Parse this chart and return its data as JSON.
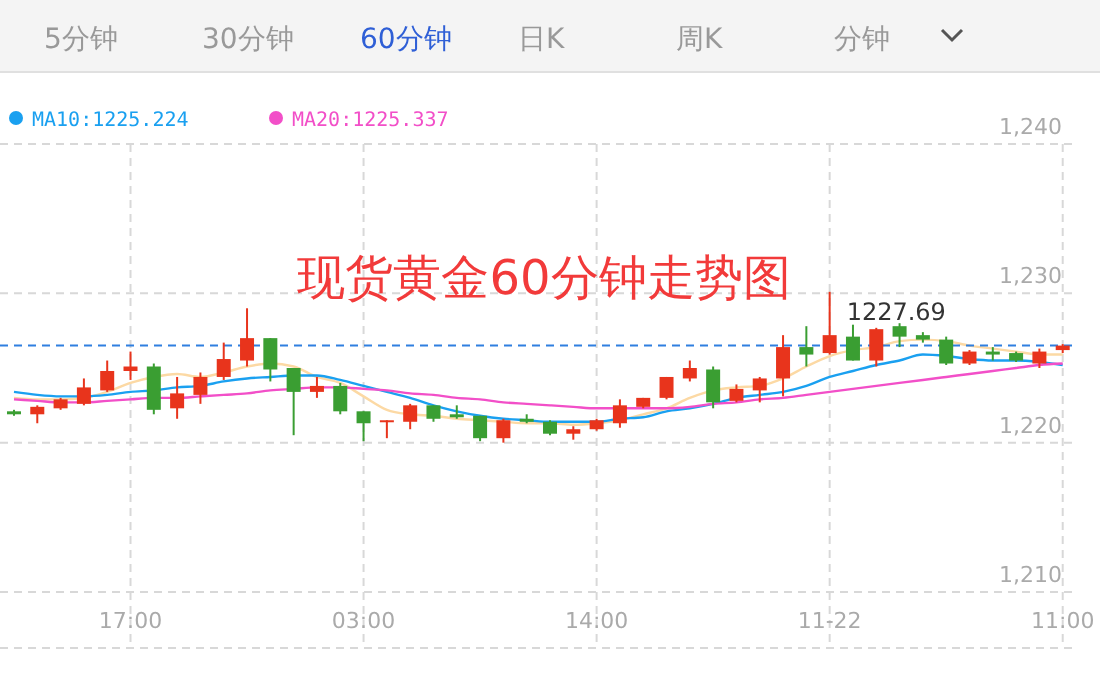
{
  "chart_data": {
    "type": "candlestick",
    "title": "现货黄金60分钟走势图",
    "annotations": [
      "5分钟",
      "30分钟",
      "60分钟",
      "日K",
      "周K",
      "分钟",
      {
        "text": "1227.69",
        "y": 1227.69
      }
    ],
    "categories": [
      null,
      null,
      null,
      null,
      null,
      "17:00",
      null,
      null,
      null,
      null,
      null,
      null,
      null,
      null,
      null,
      "03:00",
      null,
      null,
      null,
      null,
      null,
      null,
      null,
      null,
      null,
      "14:00",
      null,
      null,
      null,
      null,
      null,
      null,
      null,
      null,
      null,
      "11-22",
      null,
      null,
      null,
      null,
      null,
      null,
      null,
      null,
      null,
      "11:00"
    ],
    "ohlc": [
      [
        1222.1,
        1222.2,
        1221.8,
        1221.9
      ],
      [
        1221.9,
        1222.5,
        1221.3,
        1222.4
      ],
      [
        1222.3,
        1223.0,
        1222.2,
        1222.9
      ],
      [
        1222.6,
        1224.3,
        1222.5,
        1223.7
      ],
      [
        1223.5,
        1225.5,
        1223.4,
        1224.8
      ],
      [
        1224.8,
        1226.1,
        1224.2,
        1225.1
      ],
      [
        1225.1,
        1225.3,
        1221.9,
        1222.2
      ],
      [
        1222.3,
        1224.4,
        1221.6,
        1223.3
      ],
      [
        1223.2,
        1224.7,
        1222.6,
        1224.4
      ],
      [
        1224.4,
        1226.7,
        1224.2,
        1225.6
      ],
      [
        1225.5,
        1229.0,
        1225.1,
        1227.0
      ],
      [
        1227.0,
        1227.0,
        1224.1,
        1224.9
      ],
      [
        1225.0,
        1225.0,
        1220.5,
        1223.4
      ],
      [
        1223.4,
        1224.4,
        1223.0,
        1223.8
      ],
      [
        1223.8,
        1224.0,
        1221.9,
        1222.1
      ],
      [
        1222.1,
        1222.1,
        1220.1,
        1221.3
      ],
      [
        1221.4,
        1221.5,
        1220.3,
        1221.5
      ],
      [
        1221.4,
        1222.6,
        1220.9,
        1222.5
      ],
      [
        1222.5,
        1222.5,
        1221.4,
        1221.6
      ],
      [
        1221.9,
        1222.5,
        1221.6,
        1221.7
      ],
      [
        1221.8,
        1221.8,
        1220.1,
        1220.3
      ],
      [
        1220.3,
        1221.6,
        1220.0,
        1221.5
      ],
      [
        1221.6,
        1221.9,
        1221.3,
        1221.4
      ],
      [
        1221.4,
        1221.5,
        1220.5,
        1220.6
      ],
      [
        1220.6,
        1221.1,
        1220.2,
        1220.9
      ],
      [
        1220.9,
        1221.6,
        1220.8,
        1221.5
      ],
      [
        1221.3,
        1222.9,
        1221.0,
        1222.5
      ],
      [
        1222.4,
        1223.0,
        1222.3,
        1223.0
      ],
      [
        1223.0,
        1224.4,
        1222.9,
        1224.4
      ],
      [
        1224.3,
        1225.5,
        1224.1,
        1225.0
      ],
      [
        1224.9,
        1225.1,
        1222.3,
        1222.7
      ],
      [
        1222.8,
        1223.9,
        1222.7,
        1223.6
      ],
      [
        1223.5,
        1224.4,
        1222.7,
        1224.3
      ],
      [
        1224.3,
        1227.2,
        1223.1,
        1226.4
      ],
      [
        1226.4,
        1227.8,
        1225.1,
        1225.9
      ],
      [
        1226.0,
        1230.1,
        1225.9,
        1227.2
      ],
      [
        1227.1,
        1227.9,
        1225.5,
        1225.5
      ],
      [
        1225.5,
        1227.69,
        1225.1,
        1227.6
      ],
      [
        1227.8,
        1228.0,
        1226.4,
        1227.1
      ],
      [
        1227.2,
        1227.4,
        1226.7,
        1226.9
      ],
      [
        1226.9,
        1227.1,
        1225.2,
        1225.3
      ],
      [
        1225.3,
        1226.2,
        1225.2,
        1226.1
      ],
      [
        1226.1,
        1226.4,
        1225.5,
        1225.9
      ],
      [
        1226.0,
        1226.1,
        1225.4,
        1225.5
      ],
      [
        1225.3,
        1226.3,
        1225.0,
        1226.1
      ],
      [
        1226.2,
        1226.6,
        1226.0,
        1226.5
      ]
    ],
    "colors": [
      "#3a9e32",
      "#e8341c",
      "#e8341c",
      "#e8341c",
      "#e8341c",
      "#e8341c",
      "#3a9e32",
      "#e8341c",
      "#e8341c",
      "#e8341c",
      "#e8341c",
      "#3a9e32",
      "#3a9e32",
      "#e8341c",
      "#3a9e32",
      "#3a9e32",
      "#e8341c",
      "#e8341c",
      "#3a9e32",
      "#3a9e32",
      "#3a9e32",
      "#e8341c",
      "#3a9e32",
      "#3a9e32",
      "#e8341c",
      "#e8341c",
      "#e8341c",
      "#e8341c",
      "#e8341c",
      "#e8341c",
      "#3a9e32",
      "#e8341c",
      "#e8341c",
      "#e8341c",
      "#3a9e32",
      "#e8341c",
      "#3a9e32",
      "#e8341c",
      "#3a9e32",
      "#3a9e32",
      "#3a9e32",
      "#e8341c",
      "#3a9e32",
      "#3a9e32",
      "#e8341c",
      "#e8341c"
    ],
    "series": [
      {
        "type": "line",
        "color": "#fcd9a4",
        "values": [
          1223.0,
          1222.9,
          1222.9,
          1223.0,
          1223.4,
          1224.0,
          1224.4,
          1224.6,
          1224.4,
          1224.7,
          1225.1,
          1225.3,
          1225.1,
          1224.4,
          1224.0,
          1223.1,
          1222.2,
          1221.9,
          1221.8,
          1221.6,
          1221.5,
          1221.4,
          1221.3,
          1221.3,
          1221.2,
          1221.3,
          1221.5,
          1221.9,
          1222.3,
          1223.0,
          1223.5,
          1223.7,
          1223.8,
          1224.3,
          1225.1,
          1225.8,
          1226.2,
          1226.4,
          1226.8,
          1226.9,
          1226.8,
          1226.5,
          1226.3,
          1226.1,
          1225.9,
          1225.9
        ]
      },
      {
        "type": "line",
        "name": "MA10:1225.224",
        "color": "#1aa0f0",
        "values": [
          1223.4,
          1223.2,
          1223.1,
          1223.1,
          1223.2,
          1223.4,
          1223.5,
          1223.7,
          1223.8,
          1224.1,
          1224.3,
          1224.4,
          1224.5,
          1224.5,
          1224.2,
          1223.8,
          1223.4,
          1223.0,
          1222.5,
          1222.1,
          1221.8,
          1221.6,
          1221.5,
          1221.4,
          1221.4,
          1221.4,
          1221.6,
          1221.7,
          1222.1,
          1222.3,
          1222.6,
          1223.0,
          1223.2,
          1223.4,
          1223.8,
          1224.4,
          1224.8,
          1225.2,
          1225.5,
          1225.9,
          1225.8,
          1225.6,
          1225.5,
          1225.5,
          1225.4,
          1225.2
        ]
      },
      {
        "type": "line",
        "name": "MA20:1225.337",
        "color": "#f24fc8",
        "values": [
          1222.9,
          1222.8,
          1222.7,
          1222.7,
          1222.8,
          1222.9,
          1223.0,
          1223.0,
          1223.1,
          1223.2,
          1223.3,
          1223.5,
          1223.6,
          1223.7,
          1223.7,
          1223.6,
          1223.5,
          1223.3,
          1223.2,
          1223.0,
          1222.9,
          1222.7,
          1222.6,
          1222.5,
          1222.4,
          1222.3,
          1222.3,
          1222.3,
          1222.3,
          1222.4,
          1222.6,
          1222.7,
          1222.9,
          1223.0,
          1223.2,
          1223.4,
          1223.6,
          1223.8,
          1224.0,
          1224.2,
          1224.4,
          1224.6,
          1224.8,
          1225.0,
          1225.2,
          1225.3
        ]
      }
    ],
    "ref_lines": [
      {
        "axis": "y",
        "value": 1226.5,
        "color": "#2f7fe0",
        "line_style": "dashed"
      }
    ],
    "ylim": [
      1210,
      1240
    ],
    "yticks": [
      {
        "value": 1210,
        "label": "1,210"
      },
      {
        "value": 1220,
        "label": "1,220"
      },
      {
        "value": 1230,
        "label": "1,230"
      },
      {
        "value": 1240,
        "label": "1,240"
      }
    ],
    "grid": true,
    "legend": "top left"
  }
}
